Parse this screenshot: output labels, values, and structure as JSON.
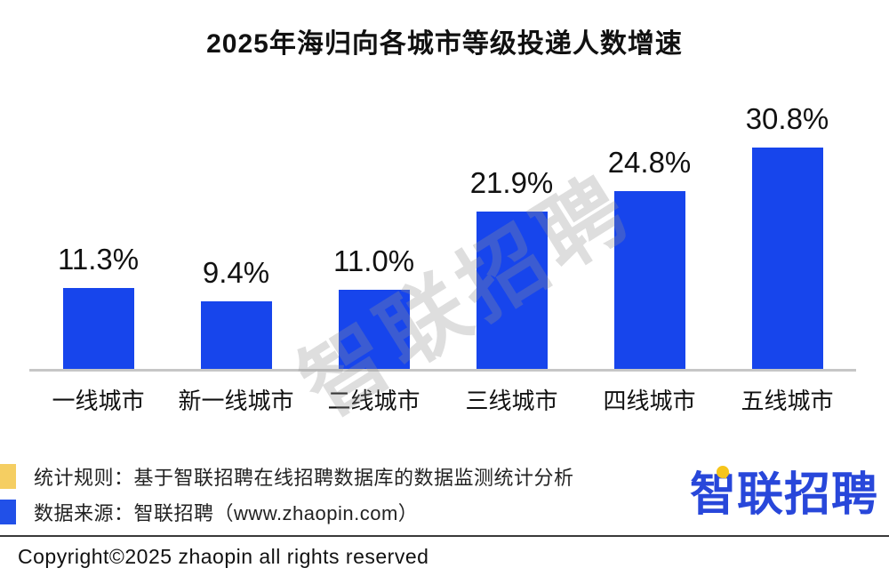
{
  "title": "2025年海归向各城市等级投递人数增速",
  "watermark": "智联招聘",
  "chart_data": {
    "type": "bar",
    "title": "2025年海归向各城市等级投递人数增速",
    "categories": [
      "一线城市",
      "新一线城市",
      "二线城市",
      "三线城市",
      "四线城市",
      "五线城市"
    ],
    "values": [
      11.3,
      9.4,
      11.0,
      21.9,
      24.8,
      30.8
    ],
    "value_labels": [
      "11.3%",
      "9.4%",
      "11.0%",
      "21.9%",
      "24.8%",
      "30.8%"
    ],
    "unit": "%",
    "xlabel": "",
    "ylabel": "",
    "ylim": [
      0,
      38
    ],
    "grid": false,
    "legend": false,
    "bar_color": "#1745ec",
    "axis_line_color": "#c6c6c6"
  },
  "footer": {
    "notes": [
      {
        "marker_color": "#f5ce62",
        "text": "统计规则：基于智联招聘在线招聘数据库的数据监测统计分析"
      },
      {
        "marker_color": "#2150e8",
        "text": "数据来源：智联招聘（www.zhaopin.com）"
      }
    ],
    "logo_text": "智联招聘",
    "copyright": "Copyright©2025 zhaopin all rights reserved"
  },
  "colors": {
    "bar_blue": "#1745ec",
    "logo_blue": "#2847da",
    "pin_yellow": "#f6c51b",
    "legend_yellow": "#f5ce62",
    "legend_blue": "#2150e8",
    "axis_gray": "#c6c6c6",
    "divider_dark": "#3a3a3a",
    "background": "#ffffff"
  }
}
